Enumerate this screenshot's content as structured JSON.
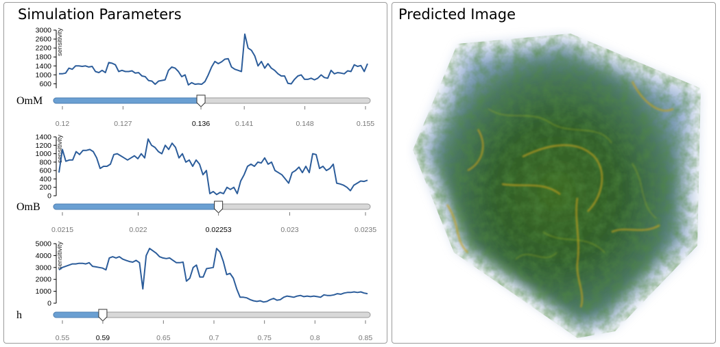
{
  "left_panel": {
    "title": "Simulation Parameters"
  },
  "right_panel": {
    "title": "Predicted Image"
  },
  "colors": {
    "line": "#2b5c9a",
    "slider_fill": "#6a9fd2",
    "slider_track": "#d8d8d8",
    "tick_text": "#777777",
    "volume_green": "#2f6b1a",
    "volume_blue": "#7d9bc8",
    "volume_yellow": "#d9a520"
  },
  "parameters": [
    {
      "name": "OmM",
      "current_value": "0.136",
      "value": 0.136,
      "min": 0.12,
      "max": 0.155,
      "ticks": [
        "0.12",
        "0.127",
        "0.136",
        "0.141",
        "0.148",
        "0.155"
      ],
      "tick_values": [
        0.12,
        0.127,
        0.136,
        0.141,
        0.148,
        0.155
      ],
      "chart": {
        "type": "line",
        "ylabel": "sensitivity",
        "ylim": [
          400,
          3000
        ],
        "yticks": [
          "3000",
          "2600",
          "2200",
          "1800",
          "1400",
          "1000",
          "600"
        ],
        "ytick_values": [
          3000,
          2600,
          2200,
          1800,
          1400,
          1000,
          600
        ],
        "values": [
          1050,
          1050,
          1080,
          1300,
          1250,
          1400,
          1400,
          1380,
          1400,
          1350,
          1380,
          1150,
          1100,
          1200,
          1100,
          1550,
          1520,
          1450,
          1150,
          1200,
          1150,
          1150,
          1180,
          1080,
          1100,
          950,
          920,
          750,
          720,
          580,
          720,
          750,
          780,
          1200,
          1350,
          1300,
          1150,
          920,
          1000,
          550,
          650,
          580,
          600,
          580,
          700,
          1000,
          1350,
          1600,
          1500,
          1580,
          1700,
          1720,
          1350,
          1250,
          1200,
          1150,
          2820,
          2200,
          2100,
          1850,
          1400,
          1600,
          1300,
          1500,
          1300,
          1200,
          1050,
          950,
          950,
          620,
          600,
          800,
          950,
          1000,
          800,
          800,
          850,
          780,
          850,
          1000,
          880,
          850,
          1200,
          1050,
          1100,
          1080,
          1050,
          1180,
          1150,
          1450,
          1380,
          1420,
          1150,
          1500
        ]
      }
    },
    {
      "name": "OmB",
      "current_value": "0.02253",
      "value": 0.02253,
      "min": 0.0215,
      "max": 0.0235,
      "ticks": [
        "0.0215",
        "0.022",
        "0.02253",
        "0.023",
        "0.0235"
      ],
      "tick_values": [
        0.0215,
        0.022,
        0.02253,
        0.023,
        0.0235
      ],
      "chart": {
        "type": "line",
        "ylabel": "sensitivity",
        "ylim": [
          0,
          1400
        ],
        "yticks": [
          "1400",
          "1200",
          "1000",
          "800",
          "600",
          "400",
          "200",
          "0"
        ],
        "ytick_values": [
          1400,
          1200,
          1000,
          800,
          600,
          400,
          200,
          0
        ],
        "values": [
          550,
          1100,
          820,
          850,
          850,
          1050,
          980,
          1080,
          1080,
          1100,
          1050,
          900,
          650,
          700,
          700,
          750,
          980,
          1000,
          950,
          900,
          850,
          900,
          950,
          880,
          1000,
          900,
          1350,
          1200,
          1150,
          1050,
          1000,
          1200,
          1100,
          1250,
          1150,
          900,
          1000,
          800,
          850,
          700,
          850,
          750,
          500,
          600,
          50,
          100,
          30,
          80,
          50,
          200,
          150,
          200,
          50,
          350,
          500,
          700,
          750,
          700,
          800,
          780,
          900,
          750,
          800,
          600,
          550,
          500,
          400,
          300,
          550,
          600,
          680,
          550,
          700,
          550,
          1000,
          980,
          650,
          700,
          600,
          650,
          750,
          300,
          280,
          250,
          200,
          120,
          250,
          300,
          350,
          340,
          370
        ]
      }
    },
    {
      "name": "h",
      "current_value": "0.59",
      "value": 0.59,
      "min": 0.55,
      "max": 0.85,
      "ticks": [
        "0.55",
        "0.59",
        "0.65",
        "0.7",
        "0.75",
        "0.8",
        "0.85"
      ],
      "tick_values": [
        0.55,
        0.59,
        0.65,
        0.7,
        0.75,
        0.8,
        0.85
      ],
      "chart": {
        "type": "line",
        "ylabel": "sensitivity",
        "ylim": [
          0,
          5000
        ],
        "yticks": [
          "5000",
          "4000",
          "3000",
          "2000",
          "1000",
          "0"
        ],
        "ytick_values": [
          5000,
          4000,
          3000,
          2000,
          1000,
          0
        ],
        "values": [
          2800,
          3000,
          3100,
          3200,
          3300,
          3300,
          3350,
          3350,
          3300,
          3400,
          3100,
          3050,
          3000,
          2950,
          2800,
          3800,
          3900,
          3800,
          3900,
          3700,
          3600,
          3500,
          3450,
          3600,
          3400,
          1200,
          4000,
          4600,
          4400,
          4200,
          3900,
          3800,
          3750,
          3800,
          3600,
          3400,
          3400,
          3450,
          1850,
          2100,
          3000,
          3200,
          2200,
          2200,
          2900,
          2950,
          3000,
          4600,
          4300,
          3500,
          2400,
          2500,
          2100,
          1200,
          500,
          500,
          450,
          300,
          200,
          150,
          200,
          100,
          150,
          300,
          400,
          250,
          300,
          500,
          600,
          550,
          500,
          600,
          650,
          550,
          600,
          550,
          600,
          550,
          500,
          700,
          650,
          650,
          700,
          800,
          750,
          850,
          900,
          900,
          950,
          900,
          950,
          850,
          800
        ]
      }
    }
  ]
}
